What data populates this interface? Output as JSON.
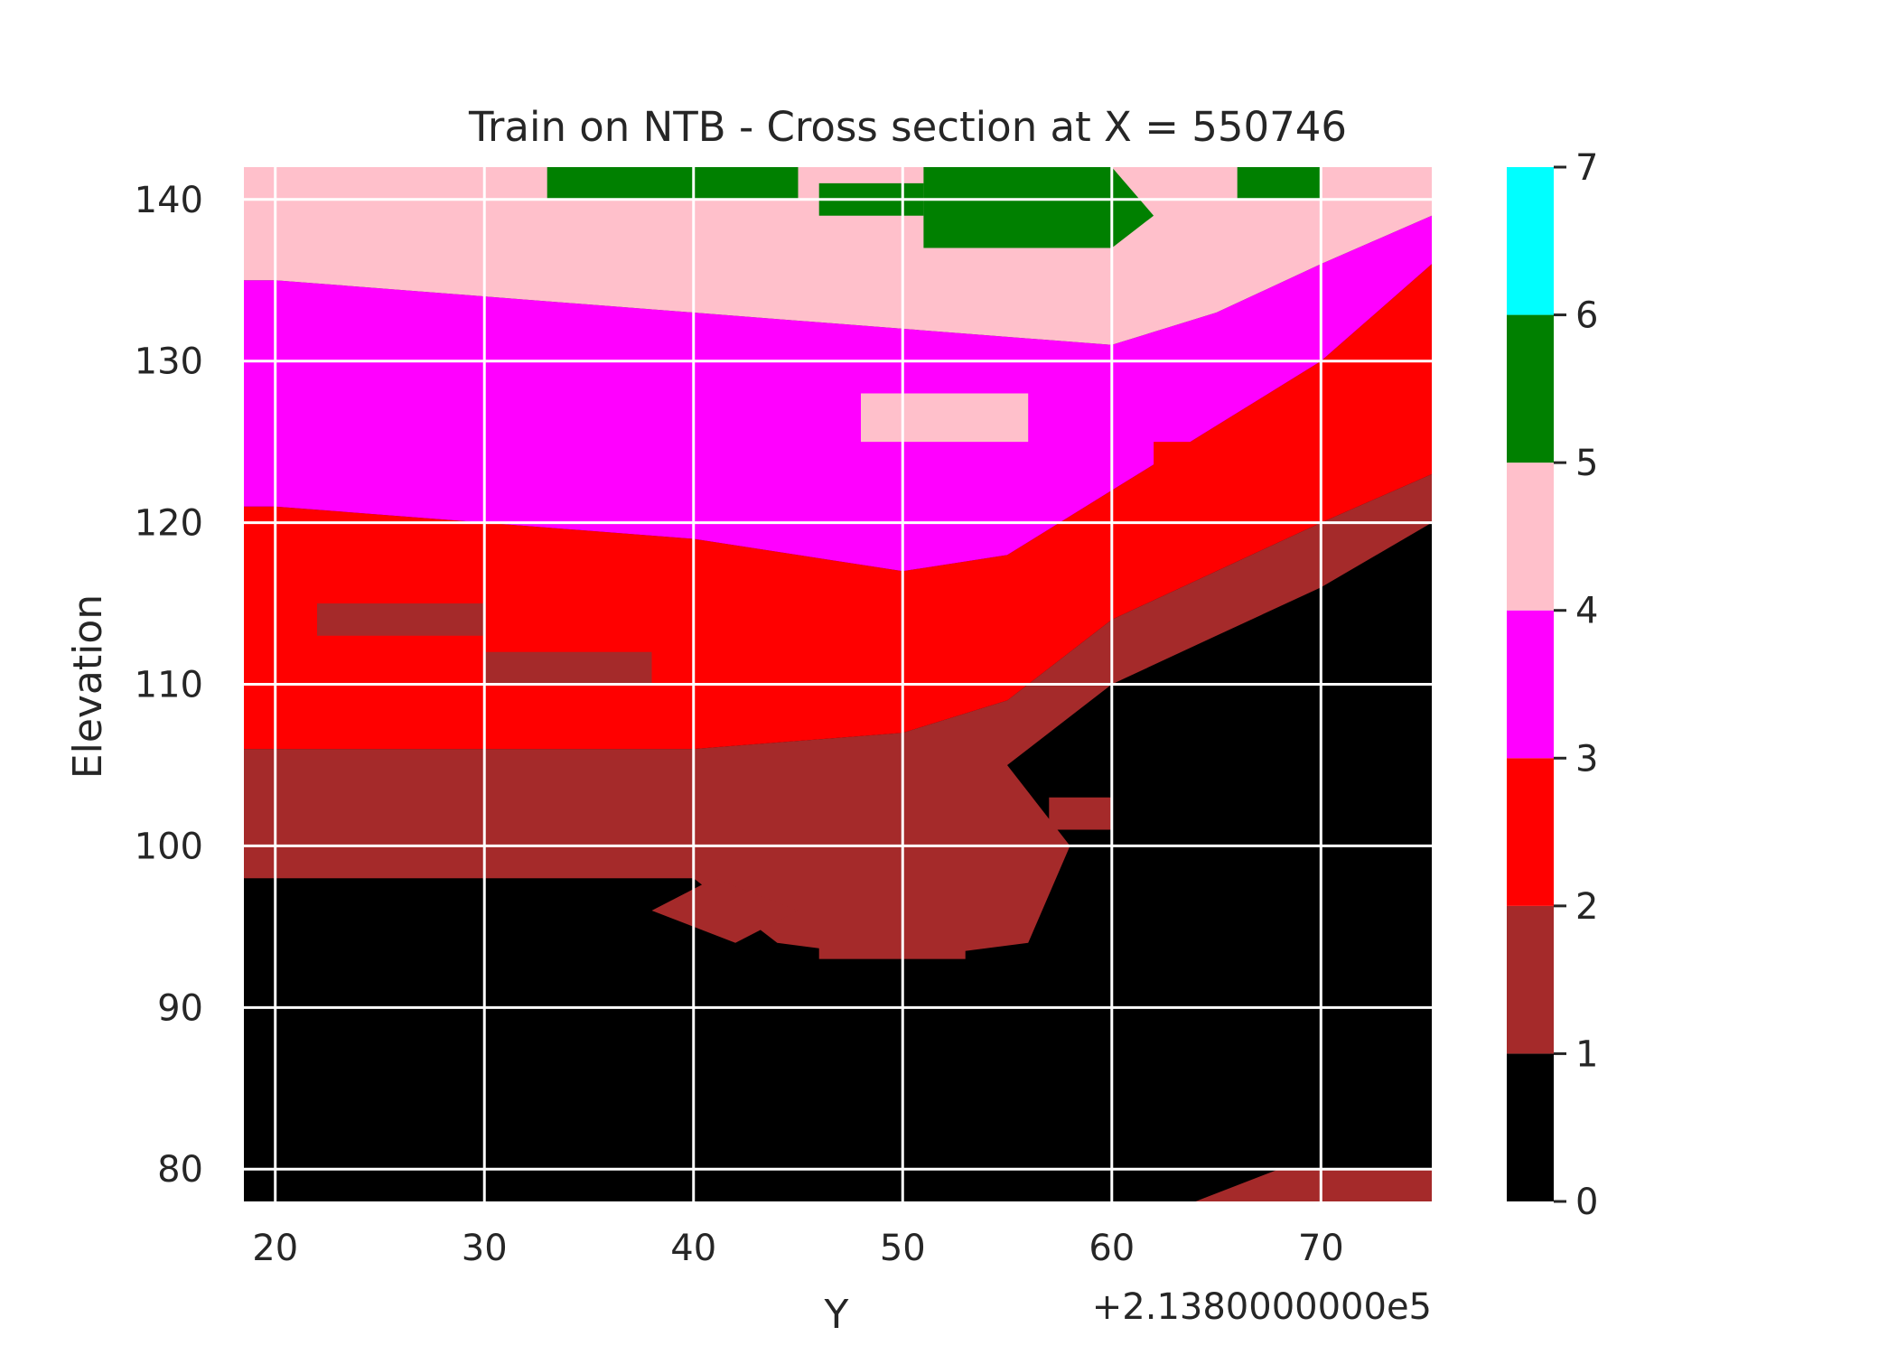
{
  "chart_data": {
    "type": "heatmap",
    "title": "Train on NTB - Cross section at X = 550746",
    "xlabel": "Y",
    "ylabel": "Elevation",
    "x_offset_label": "+2.1380000000e5",
    "xlim": [
      18.5,
      75.3
    ],
    "ylim": [
      78.0,
      142.0
    ],
    "x_ticks": [
      20,
      30,
      40,
      50,
      60,
      70
    ],
    "x_tick_labels": [
      "20",
      "30",
      "40",
      "50",
      "60",
      "70"
    ],
    "y_ticks": [
      80,
      90,
      100,
      110,
      120,
      130,
      140
    ],
    "y_tick_labels": [
      "80",
      "90",
      "100",
      "110",
      "120",
      "130",
      "140"
    ],
    "grid": true,
    "colorbar": {
      "ticks": [
        0,
        1,
        2,
        3,
        4,
        5,
        6,
        7
      ],
      "tick_labels": [
        "0",
        "1",
        "2",
        "3",
        "4",
        "5",
        "6",
        "7"
      ],
      "colors": [
        "#000000",
        "#a52a2a",
        "#ff0000",
        "#ff00ff",
        "#ffc0cb",
        "#008000",
        "#00ffff"
      ]
    },
    "y_bands": [
      [
        78,
        100,
        0
      ],
      [
        100,
        102,
        1
      ],
      [
        102,
        106,
        1
      ],
      [
        106,
        108,
        2
      ],
      [
        108,
        110,
        2
      ],
      [
        110,
        114,
        2
      ],
      [
        114,
        118,
        3
      ],
      [
        118,
        122,
        2
      ],
      [
        122,
        126,
        3
      ],
      [
        126,
        130,
        3
      ],
      [
        130,
        134,
        3
      ],
      [
        134,
        138,
        4
      ],
      [
        138,
        142,
        4
      ]
    ],
    "regions": [
      {
        "value": 0,
        "points": [
          [
            18.5,
            78
          ],
          [
            75.3,
            78
          ],
          [
            75.3,
            120
          ],
          [
            70,
            116
          ],
          [
            65,
            113
          ],
          [
            60,
            110
          ],
          [
            55,
            104
          ],
          [
            52,
            103
          ],
          [
            45,
            102
          ],
          [
            30,
            102
          ],
          [
            25,
            103
          ],
          [
            18.5,
            104
          ]
        ]
      },
      {
        "value": 1,
        "points": [
          [
            18.5,
            98
          ],
          [
            40,
            98
          ],
          [
            44,
            94
          ],
          [
            50,
            93
          ],
          [
            56,
            94
          ],
          [
            58,
            100
          ],
          [
            55,
            105
          ],
          [
            60,
            110
          ],
          [
            65,
            113
          ],
          [
            70,
            116
          ],
          [
            75.3,
            120
          ],
          [
            75.3,
            123
          ],
          [
            70,
            120
          ],
          [
            65,
            117
          ],
          [
            60,
            114
          ],
          [
            55,
            109
          ],
          [
            50,
            107
          ],
          [
            40,
            106
          ],
          [
            30,
            106
          ],
          [
            20,
            106
          ],
          [
            18.5,
            106
          ]
        ]
      },
      {
        "value": 2,
        "points": [
          [
            18.5,
            106
          ],
          [
            20,
            106
          ],
          [
            30,
            106
          ],
          [
            40,
            106
          ],
          [
            50,
            107
          ],
          [
            55,
            109
          ],
          [
            60,
            114
          ],
          [
            65,
            117
          ],
          [
            70,
            120
          ],
          [
            75.3,
            123
          ],
          [
            75.3,
            136
          ],
          [
            70,
            130
          ],
          [
            65,
            126
          ],
          [
            60,
            122
          ],
          [
            55,
            118
          ],
          [
            50,
            117
          ],
          [
            40,
            119
          ],
          [
            30,
            120
          ],
          [
            20,
            121
          ],
          [
            18.5,
            121
          ]
        ]
      },
      {
        "value": 3,
        "points": [
          [
            18.5,
            121
          ],
          [
            20,
            121
          ],
          [
            30,
            120
          ],
          [
            40,
            119
          ],
          [
            50,
            117
          ],
          [
            55,
            118
          ],
          [
            60,
            122
          ],
          [
            65,
            126
          ],
          [
            70,
            130
          ],
          [
            75.3,
            136
          ],
          [
            75.3,
            139
          ],
          [
            70,
            136
          ],
          [
            65,
            133
          ],
          [
            60,
            131
          ],
          [
            50,
            132
          ],
          [
            40,
            133
          ],
          [
            30,
            134
          ],
          [
            20,
            135
          ],
          [
            18.5,
            135
          ]
        ]
      },
      {
        "value": 4,
        "points": [
          [
            18.5,
            135
          ],
          [
            20,
            135
          ],
          [
            30,
            134
          ],
          [
            40,
            133
          ],
          [
            50,
            132
          ],
          [
            60,
            131
          ],
          [
            65,
            133
          ],
          [
            70,
            136
          ],
          [
            75.3,
            139
          ],
          [
            75.3,
            142
          ],
          [
            18.5,
            142
          ]
        ]
      },
      {
        "value": 5,
        "points": [
          [
            33,
            140
          ],
          [
            45,
            140
          ],
          [
            45,
            142
          ],
          [
            33,
            142
          ]
        ]
      },
      {
        "value": 5,
        "points": [
          [
            46,
            139
          ],
          [
            51,
            139
          ],
          [
            51,
            141
          ],
          [
            46,
            141
          ]
        ]
      },
      {
        "value": 5,
        "points": [
          [
            51,
            137
          ],
          [
            60,
            137
          ],
          [
            62,
            139
          ],
          [
            60,
            142
          ],
          [
            51,
            142
          ]
        ]
      },
      {
        "value": 5,
        "points": [
          [
            66,
            140
          ],
          [
            70,
            140
          ],
          [
            70,
            142
          ],
          [
            66,
            142
          ]
        ]
      },
      {
        "value": 1,
        "points": [
          [
            64,
            78
          ],
          [
            68,
            80
          ],
          [
            75.3,
            80
          ],
          [
            75.3,
            78
          ]
        ]
      },
      {
        "value": 1,
        "points": [
          [
            38,
            96
          ],
          [
            42,
            94
          ],
          [
            45,
            96
          ],
          [
            41,
            98
          ]
        ]
      },
      {
        "value": 1,
        "points": [
          [
            46,
            96
          ],
          [
            53,
            96
          ],
          [
            53,
            98
          ],
          [
            46,
            98
          ]
        ]
      },
      {
        "value": 1,
        "points": [
          [
            46,
            93
          ],
          [
            53,
            93
          ],
          [
            53,
            94.5
          ],
          [
            46,
            94.5
          ]
        ]
      },
      {
        "value": 1,
        "points": [
          [
            57,
            101
          ],
          [
            60,
            101
          ],
          [
            60,
            103
          ],
          [
            57,
            103
          ]
        ]
      },
      {
        "value": 3,
        "points": [
          [
            19,
            128
          ],
          [
            26,
            128
          ],
          [
            26,
            130
          ],
          [
            19,
            130
          ]
        ]
      },
      {
        "value": 3,
        "points": [
          [
            28,
            125
          ],
          [
            36,
            125
          ],
          [
            36,
            127
          ],
          [
            28,
            127
          ]
        ]
      },
      {
        "value": 3,
        "points": [
          [
            40,
            123
          ],
          [
            48,
            123
          ],
          [
            48,
            125
          ],
          [
            40,
            125
          ]
        ]
      },
      {
        "value": 4,
        "points": [
          [
            48,
            125
          ],
          [
            56,
            125
          ],
          [
            56,
            128
          ],
          [
            48,
            128
          ]
        ]
      },
      {
        "value": 2,
        "points": [
          [
            43,
            115
          ],
          [
            53,
            115
          ],
          [
            53,
            117
          ],
          [
            43,
            117
          ]
        ]
      },
      {
        "value": 2,
        "points": [
          [
            62,
            123
          ],
          [
            68,
            123
          ],
          [
            68,
            125
          ],
          [
            62,
            125
          ]
        ]
      },
      {
        "value": 1,
        "points": [
          [
            22,
            113
          ],
          [
            30,
            113
          ],
          [
            30,
            115
          ],
          [
            22,
            115
          ]
        ]
      },
      {
        "value": 1,
        "points": [
          [
            30,
            110
          ],
          [
            38,
            110
          ],
          [
            38,
            112
          ],
          [
            30,
            112
          ]
        ]
      }
    ]
  }
}
